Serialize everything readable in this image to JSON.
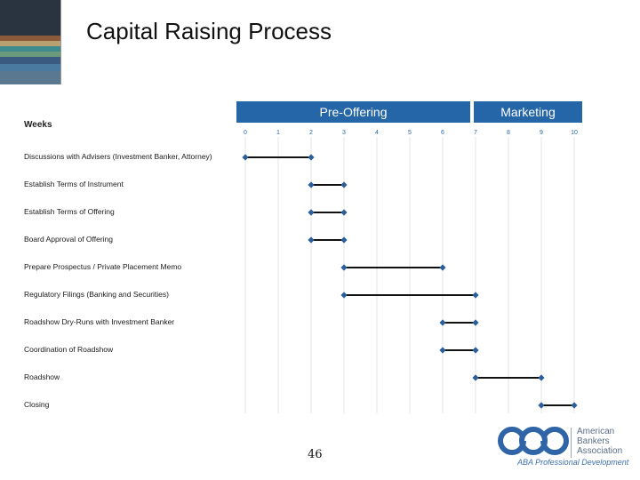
{
  "slide": {
    "title": "Capital Raising Process",
    "page_number": "46",
    "colors": {
      "accent": "#2466a8",
      "bar": "#111111",
      "diamond": "#2b5f99",
      "stripes": [
        "#2a3440",
        "#8a5a3a",
        "#b8a070",
        "#3f8a8c",
        "#6a9a7a",
        "#3a5a80",
        "#4a7aa0",
        "#5a7890"
      ]
    }
  },
  "logo": {
    "org_line1": "American",
    "org_line2": "Bankers",
    "org_line3": "Association",
    "tagline": "ABA Professional Development",
    "icon": "aba-logo-mark"
  },
  "chart_data": {
    "type": "gantt",
    "title": "",
    "xlabel": "Weeks",
    "xlim": [
      0,
      10
    ],
    "x_ticks": [
      "0",
      "1",
      "2",
      "3",
      "4",
      "5",
      "6",
      "7",
      "8",
      "9",
      "10"
    ],
    "phases": [
      {
        "label": "Pre-Offering",
        "start": 0,
        "end": 7
      },
      {
        "label": "Marketing",
        "start": 7,
        "end": 10
      }
    ],
    "tasks": [
      {
        "label": "Discussions with Advisers (Investment Banker, Attorney)",
        "start": 0,
        "end": 2
      },
      {
        "label": "Establish Terms of Instrument",
        "start": 2,
        "end": 3
      },
      {
        "label": "Establish Terms of Offering",
        "start": 2,
        "end": 3
      },
      {
        "label": "Board Approval of Offering",
        "start": 2,
        "end": 3
      },
      {
        "label": "Prepare Prospectus / Private Placement Memo",
        "start": 3,
        "end": 6
      },
      {
        "label": "Regulatory Filings (Banking and Securities)",
        "start": 3,
        "end": 7
      },
      {
        "label": "Roadshow Dry-Runs with Investment Banker",
        "start": 6,
        "end": 7
      },
      {
        "label": "Coordination of Roadshow",
        "start": 6,
        "end": 7
      },
      {
        "label": "Roadshow",
        "start": 7,
        "end": 9
      },
      {
        "label": "Closing",
        "start": 9,
        "end": 10
      }
    ],
    "grid": true
  }
}
